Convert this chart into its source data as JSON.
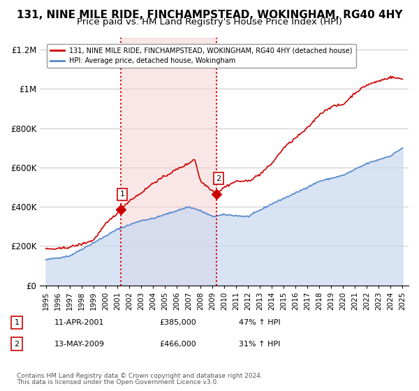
{
  "title": "131, NINE MILE RIDE, FINCHAMPSTEAD, WOKINGHAM, RG40 4HY",
  "subtitle": "Price paid vs. HM Land Registry's House Price Index (HPI)",
  "title_fontsize": 11,
  "subtitle_fontsize": 9.5,
  "red_line_color": "#cc0000",
  "blue_line_color": "#5588cc",
  "blue_fill_color": "#c8d8f0",
  "pink_fill_color": "#f5d0d0",
  "marker_color": "#cc0000",
  "vline_color": "#cc0000",
  "sale1_x": 2001.28,
  "sale1_y": 385000,
  "sale1_label": "1",
  "sale2_x": 2009.37,
  "sale2_y": 466000,
  "sale2_label": "2",
  "ylim": [
    0,
    1260000
  ],
  "xlim": [
    1994.5,
    2025.5
  ],
  "yticks": [
    0,
    200000,
    400000,
    600000,
    800000,
    1000000,
    1200000
  ],
  "ytick_labels": [
    "£0",
    "£200K",
    "£400K",
    "£600K",
    "£800K",
    "£1M",
    "£1.2M"
  ],
  "xticks": [
    1995,
    1996,
    1997,
    1998,
    1999,
    2000,
    2001,
    2002,
    2003,
    2004,
    2005,
    2006,
    2007,
    2008,
    2009,
    2010,
    2011,
    2012,
    2013,
    2014,
    2015,
    2016,
    2017,
    2018,
    2019,
    2020,
    2021,
    2022,
    2023,
    2024,
    2025
  ],
  "legend_line1": "131, NINE MILE RIDE, FINCHAMPSTEAD, WOKINGHAM, RG40 4HY (detached house)",
  "legend_line2": "HPI: Average price, detached house, Wokingham",
  "footer1": "Contains HM Land Registry data © Crown copyright and database right 2024.",
  "footer2": "This data is licensed under the Open Government Licence v3.0.",
  "table_row1_num": "1",
  "table_row1_date": "11-APR-2001",
  "table_row1_price": "£385,000",
  "table_row1_hpi": "47% ↑ HPI",
  "table_row2_num": "2",
  "table_row2_date": "13-MAY-2009",
  "table_row2_price": "£466,000",
  "table_row2_hpi": "31% ↑ HPI",
  "bg_color": "#ffffff",
  "grid_color": "#cccccc"
}
